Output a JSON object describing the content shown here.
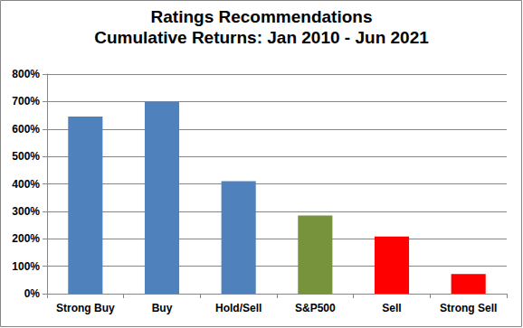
{
  "chart_data": {
    "type": "bar",
    "title": "Ratings Recommendations",
    "subtitle": "Cumulative Returns: Jan 2010 - Jun 2021",
    "categories": [
      "Strong Buy",
      "Buy",
      "Hold/Sell",
      "S&P500",
      "Sell",
      "Strong Sell"
    ],
    "values": [
      645,
      700,
      410,
      285,
      208,
      72
    ],
    "colors": [
      "#4f81bd",
      "#4f81bd",
      "#4f81bd",
      "#77933c",
      "#ff0000",
      "#ff0000"
    ],
    "ylim": [
      0,
      800
    ],
    "yticks": [
      {
        "value": 0,
        "label": "0%"
      },
      {
        "value": 100,
        "label": "100%"
      },
      {
        "value": 200,
        "label": "200%"
      },
      {
        "value": 300,
        "label": "300%"
      },
      {
        "value": 400,
        "label": "400%"
      },
      {
        "value": 500,
        "label": "500%"
      },
      {
        "value": 600,
        "label": "600%"
      },
      {
        "value": 700,
        "label": "700%"
      },
      {
        "value": 800,
        "label": "800%"
      }
    ],
    "grid": true
  }
}
